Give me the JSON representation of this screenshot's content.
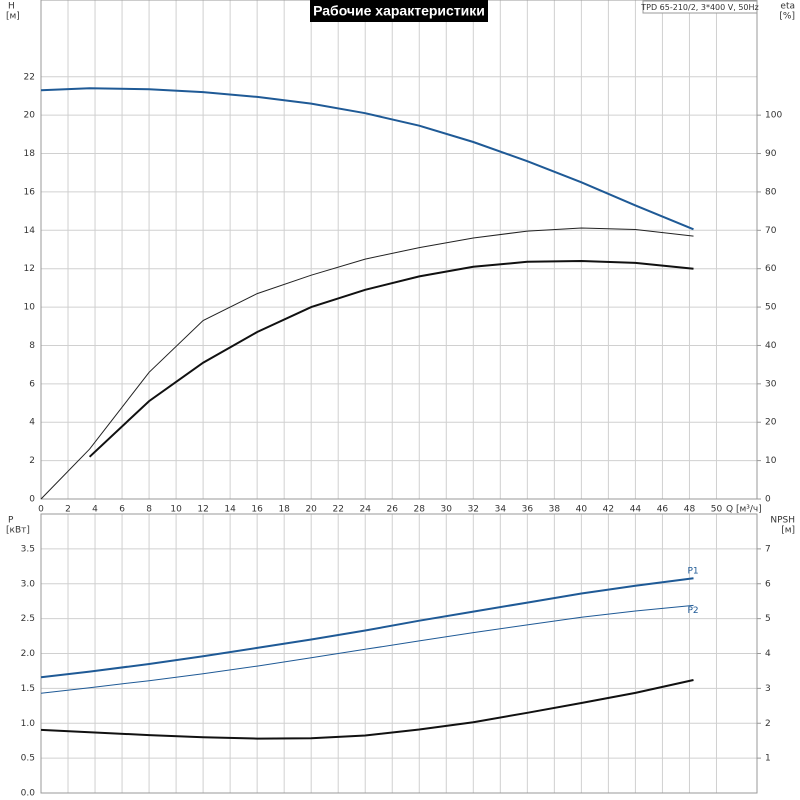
{
  "chart_data": [
    {
      "type": "line",
      "title": "Рабочие характеристики",
      "subtitle": "TPD 65-210/2, 3*400 V, 50Hz",
      "ylabel": "H",
      "yunit": "[м]",
      "y2label": "eta",
      "y2unit": "[%]",
      "xlabel": "Q [м³/ч]",
      "x": [
        0,
        3.6,
        8,
        12,
        16,
        20,
        24,
        28,
        32,
        36,
        40,
        44,
        48.3
      ],
      "xlim": [
        0,
        53
      ],
      "xticks": [
        0,
        2,
        4,
        6,
        8,
        10,
        12,
        14,
        16,
        18,
        20,
        22,
        24,
        26,
        28,
        30,
        32,
        34,
        36,
        38,
        40,
        42,
        44,
        46,
        48,
        50
      ],
      "ylim": [
        0,
        26
      ],
      "yticks": [
        0,
        2,
        4,
        6,
        8,
        10,
        12,
        14,
        16,
        18,
        20,
        22
      ],
      "y2lim": [
        0,
        130
      ],
      "y2ticks": [
        0,
        10,
        20,
        30,
        40,
        50,
        60,
        70,
        80,
        90,
        100
      ],
      "grid": true,
      "series": [
        {
          "color": "#1f5a96",
          "width": 2,
          "values": [
            21.3,
            21.4,
            21.35,
            21.2,
            20.95,
            20.6,
            20.1,
            19.45,
            18.6,
            17.6,
            16.5,
            15.3,
            14.05
          ]
        },
        {
          "color": "#222222",
          "width": 1,
          "axis": "y2",
          "values": [
            0,
            13,
            33,
            46.5,
            53.5,
            58.3,
            62.5,
            65.5,
            68,
            69.8,
            70.6,
            70.2,
            68.5
          ]
        },
        {
          "color": "#111111",
          "width": 2,
          "axis": "y2",
          "values": [
            null,
            11,
            25.5,
            35.5,
            43.5,
            50,
            54.5,
            58,
            60.5,
            61.8,
            62,
            61.5,
            60
          ]
        }
      ]
    },
    {
      "type": "line",
      "ylabel": "P",
      "yunit": "[кВт]",
      "y2label": "NPSH",
      "y2unit": "[м]",
      "x": [
        0,
        3.6,
        8,
        12,
        16,
        20,
        24,
        28,
        32,
        36,
        40,
        44,
        48.3
      ],
      "xlim": [
        0,
        53
      ],
      "xticks": [
        0,
        2,
        4,
        6,
        8,
        10,
        12,
        14,
        16,
        18,
        20,
        22,
        24,
        26,
        28,
        30,
        32,
        34,
        36,
        38,
        40,
        42,
        44,
        46,
        48,
        50
      ],
      "ylim": [
        0,
        4
      ],
      "yticks": [
        {
          "value": 0,
          "label": "0.0"
        },
        {
          "value": 0.5,
          "label": "0.5"
        },
        {
          "value": 1,
          "label": "1.0"
        },
        {
          "value": 1.5,
          "label": "1.5"
        },
        {
          "value": 2,
          "label": "2.0"
        },
        {
          "value": 2.5,
          "label": "2.5"
        },
        {
          "value": 3,
          "label": "3.0"
        },
        {
          "value": 3.5,
          "label": "3.5"
        }
      ],
      "y2lim": [
        0,
        8
      ],
      "y2ticks": [
        1,
        2,
        3,
        4,
        5,
        6,
        7
      ],
      "grid": true,
      "series": [
        {
          "name": "P1",
          "color": "#1f5a96",
          "width": 2,
          "values": [
            1.66,
            1.74,
            1.85,
            1.96,
            2.08,
            2.2,
            2.33,
            2.47,
            2.6,
            2.73,
            2.86,
            2.97,
            3.08
          ]
        },
        {
          "name": "P2",
          "color": "#1f5a96",
          "width": 1,
          "values": [
            1.43,
            1.51,
            1.61,
            1.71,
            1.82,
            1.94,
            2.06,
            2.18,
            2.3,
            2.41,
            2.52,
            2.61,
            2.69
          ]
        },
        {
          "color": "#111111",
          "width": 2,
          "axis": "y2",
          "values": [
            1.81,
            1.74,
            1.66,
            1.6,
            1.56,
            1.57,
            1.65,
            1.82,
            2.03,
            2.3,
            2.58,
            2.87,
            3.24
          ]
        }
      ]
    }
  ]
}
